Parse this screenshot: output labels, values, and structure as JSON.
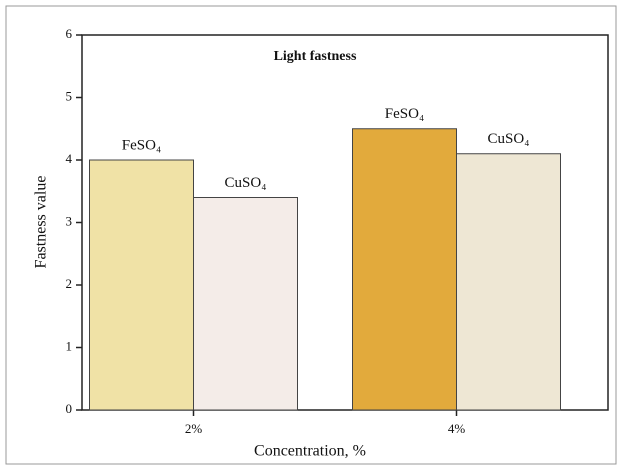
{
  "chart_data": {
    "type": "bar",
    "title": "Light fastness",
    "x_label": "Concentration, %",
    "y_label": "Fastness value",
    "categories": [
      "2%",
      "4%"
    ],
    "series": [
      {
        "name": "FeSO₄",
        "colors": [
          "#f0e2a6",
          "#e2aa3c"
        ],
        "values": [
          4.0,
          4.5
        ]
      },
      {
        "name": "CuSO₄",
        "colors": [
          "#f4ece8",
          "#eee7d4"
        ],
        "values": [
          3.4,
          4.1
        ]
      }
    ],
    "ylim": [
      0,
      6
    ],
    "yticks": [
      0,
      1,
      2,
      3,
      4,
      5,
      6
    ]
  }
}
